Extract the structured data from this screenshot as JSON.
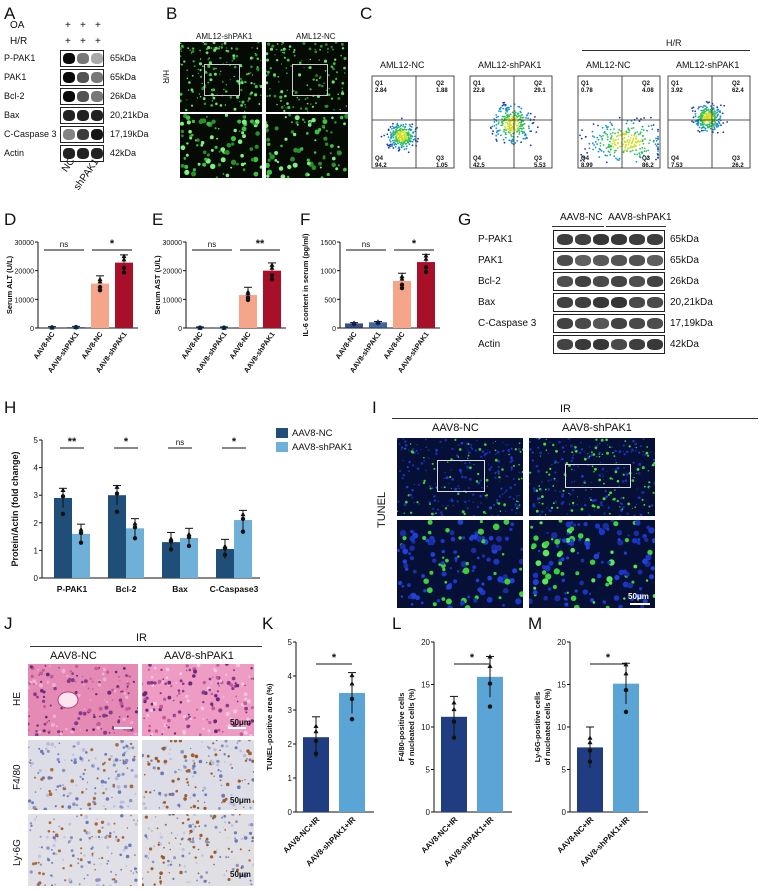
{
  "panels": {
    "A": "A",
    "B": "B",
    "C": "C",
    "D": "D",
    "E": "E",
    "F": "F",
    "G": "G",
    "H": "H",
    "I": "I",
    "J": "J",
    "K": "K",
    "L": "L",
    "M": "M"
  },
  "A": {
    "cond_labels": [
      "OA",
      "H/R"
    ],
    "plus": "+",
    "rows": [
      {
        "name": "P-PAK1",
        "kda": "65kDa",
        "lvl": [
          1,
          0.55,
          0.35
        ]
      },
      {
        "name": "PAK1",
        "kda": "65kDa",
        "lvl": [
          1,
          0.7,
          0.55
        ]
      },
      {
        "name": "Bcl-2",
        "kda": "26kDa",
        "lvl": [
          1,
          0.7,
          0.55
        ]
      },
      {
        "name": "Bax",
        "kda": "20,21kDa",
        "lvl": [
          0.9,
          0.9,
          0.9
        ]
      },
      {
        "name": "C-Caspase 3",
        "kda": "17,19kDa",
        "lvl": [
          0.5,
          0.8,
          0.95
        ]
      },
      {
        "name": "Actin",
        "kda": "42kDa",
        "lvl": [
          0.9,
          0.9,
          0.9
        ]
      }
    ],
    "lanes": [
      "NC",
      "shPAK1"
    ]
  },
  "B": {
    "cols": [
      "AML12-shPAK1",
      "AML12-NC"
    ],
    "side": "H/R"
  },
  "C": {
    "group_label": "H/R",
    "plots": [
      {
        "title": "AML12-NC",
        "q1": "Q1",
        "q1v": "2.84",
        "q2": "Q2",
        "q2v": "1.88",
        "q3": "Q3",
        "q3v": "1.05",
        "q4": "Q4",
        "q4v": "94.2"
      },
      {
        "title": "AML12-shPAK1",
        "q1": "Q1",
        "q1v": "22.8",
        "q2": "Q2",
        "q2v": "29.1",
        "q3": "Q3",
        "q3v": "5.53",
        "q4": "Q4",
        "q4v": "42.5"
      },
      {
        "title": "AML12-NC",
        "q1": "Q1",
        "q1v": "0.78",
        "q2": "Q2",
        "q2v": "4.08",
        "q3": "Q3",
        "q3v": "86.2",
        "q4": "Q4",
        "q4v": "8.99"
      },
      {
        "title": "AML12-shPAK1",
        "q1": "Q1",
        "q1v": "3.92",
        "q2": "Q2",
        "q2v": "62.4",
        "q3": "Q3",
        "q3v": "26.2",
        "q4": "Q4",
        "q4v": "7.53"
      }
    ]
  },
  "colors": {
    "nc_light": "#1a2f6b",
    "sh_light": "#1f4e8c",
    "nc_ir": "#f4a58a",
    "sh_ir": "#a8102a",
    "dark": "#1f4e79",
    "light": "#6fb0d8",
    "k_dark": "#1f3d80",
    "k_light": "#5aa5d6"
  },
  "chart_data": [
    {
      "id": "D",
      "type": "bar",
      "ylabel": "Serum ALT (U/L)",
      "ylim": [
        0,
        30000
      ],
      "yticks": [
        "0",
        "10000",
        "20000",
        "30000"
      ],
      "categories": [
        "AAV8-NC",
        "AAV8-shPAK1",
        "AAV8-NC",
        "AAV8-shPAK1"
      ],
      "values": [
        200,
        300,
        15500,
        22800
      ],
      "sig": [
        "ns",
        "*"
      ]
    },
    {
      "id": "E",
      "type": "bar",
      "ylabel": "Serum AST (U/L)",
      "ylim": [
        0,
        30000
      ],
      "yticks": [
        "0",
        "10000",
        "20000",
        "30000"
      ],
      "categories": [
        "AAV8-NC",
        "AAV8-shPAK1",
        "AAV8-NC",
        "AAV8-shPAK1"
      ],
      "values": [
        100,
        100,
        11500,
        20000
      ],
      "sig": [
        "ns",
        "**"
      ]
    },
    {
      "id": "F",
      "type": "bar",
      "ylabel": "IL-6 content in serum (pg/ml)",
      "ylim": [
        0,
        1500
      ],
      "yticks": [
        "0",
        "500",
        "1000",
        "1500"
      ],
      "categories": [
        "AAV8-NC",
        "AAV8-shPAK1",
        "AAV8-NC",
        "AAV8-shPAK1"
      ],
      "values": [
        80,
        100,
        820,
        1150
      ],
      "sig": [
        "ns",
        "*"
      ]
    },
    {
      "id": "H",
      "type": "bar",
      "ylabel": "Protein/Actin (fold change)",
      "ylim": [
        0,
        5
      ],
      "yticks": [
        "0",
        "1",
        "2",
        "3",
        "4",
        "5"
      ],
      "categories": [
        "P-PAK1",
        "Bcl-2",
        "Bax",
        "C-Caspase3"
      ],
      "series": [
        {
          "name": "AAV8-NC",
          "values": [
            2.9,
            3.0,
            1.3,
            1.05
          ]
        },
        {
          "name": "AAV8-shPAK1",
          "values": [
            1.6,
            1.8,
            1.45,
            2.1
          ]
        }
      ],
      "sig": [
        "**",
        "*",
        "ns",
        "*"
      ]
    },
    {
      "id": "K",
      "type": "bar",
      "ylabel": "TUNEL-positive area (%)",
      "ylim": [
        0,
        5
      ],
      "yticks": [
        "0",
        "1",
        "2",
        "3",
        "4",
        "5"
      ],
      "categories": [
        "AAV8-NC+IR",
        "AAV8-shPAK1+IR"
      ],
      "values": [
        2.2,
        3.5
      ],
      "sig": [
        "*"
      ]
    },
    {
      "id": "L",
      "type": "bar",
      "ylabel": "F4/80-positive cells of nucleated cells (%)",
      "ylim": [
        0,
        20
      ],
      "yticks": [
        "0",
        "5",
        "10",
        "15",
        "20"
      ],
      "categories": [
        "AAV8-NC+IR",
        "AAV8-shPAK1+IR"
      ],
      "values": [
        11.2,
        15.9
      ],
      "sig": [
        "*"
      ]
    },
    {
      "id": "M",
      "type": "bar",
      "ylabel": "Ly-6G-positive cells of nucleated cells (%)",
      "ylim": [
        0,
        20
      ],
      "yticks": [
        "0",
        "5",
        "10",
        "15",
        "20"
      ],
      "categories": [
        "AAV8-NC+IR",
        "AAV8-shPAK1+IR"
      ],
      "values": [
        7.6,
        15.1
      ],
      "sig": [
        "*"
      ]
    }
  ],
  "G": {
    "cols": [
      "AAV8-NC",
      "AAV8-shPAK1"
    ],
    "rows": [
      {
        "name": "P-PAK1",
        "kda": "65kDa"
      },
      {
        "name": "PAK1",
        "kda": "65kDa"
      },
      {
        "name": "Bcl-2",
        "kda": "26kDa"
      },
      {
        "name": "Bax",
        "kda": "20,21kDa"
      },
      {
        "name": "C-Caspase 3",
        "kda": "17,19kDa"
      },
      {
        "name": "Actin",
        "kda": "42kDa"
      }
    ]
  },
  "I": {
    "group": "IR",
    "cols": [
      "AAV8-NC",
      "AAV8-shPAK1"
    ],
    "side": "TUNEL",
    "scale": "50μm"
  },
  "J": {
    "group": "IR",
    "cols": [
      "AAV8-NC",
      "AAV8-shPAK1"
    ],
    "rows": [
      "HE",
      "F4/80",
      "Ly-6G"
    ],
    "scale": "50μm"
  }
}
